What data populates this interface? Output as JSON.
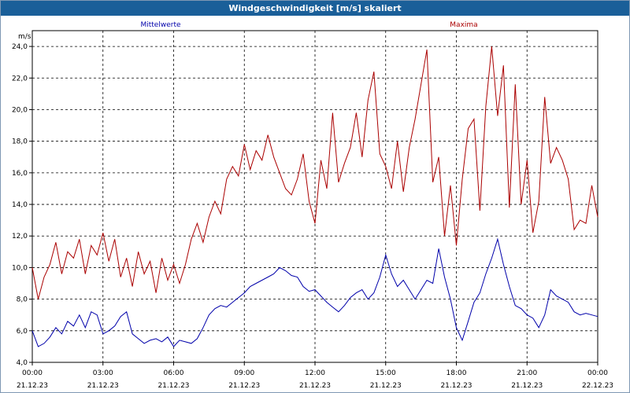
{
  "window": {
    "title": "Windgeschwindigkeit [m/s] skaliert"
  },
  "chart_data": {
    "type": "line",
    "title": "Windgeschwindigkeit [m/s] skaliert",
    "ylabel": "m/s",
    "ylim": [
      4.0,
      25.0
    ],
    "yticks": [
      "4,0",
      "6,0",
      "8,0",
      "10,0",
      "12,0",
      "14,0",
      "16,0",
      "18,0",
      "20,0",
      "22,0",
      "24,0"
    ],
    "xlim_hours": [
      0,
      24
    ],
    "xticks": [
      {
        "time": "00:00",
        "date": "21.12.23"
      },
      {
        "time": "03:00",
        "date": "21.12.23"
      },
      {
        "time": "06:00",
        "date": "21.12.23"
      },
      {
        "time": "09:00",
        "date": "21.12.23"
      },
      {
        "time": "12:00",
        "date": "21.12.23"
      },
      {
        "time": "15:00",
        "date": "21.12.23"
      },
      {
        "time": "18:00",
        "date": "21.12.23"
      },
      {
        "time": "21:00",
        "date": "21.12.23"
      },
      {
        "time": "00:00",
        "date": "22.12.23"
      }
    ],
    "grid": true,
    "series": [
      {
        "name": "Mittelwerte",
        "color": "#0000aa",
        "x": [
          0,
          0.25,
          0.5,
          0.75,
          1,
          1.25,
          1.5,
          1.75,
          2,
          2.25,
          2.5,
          2.75,
          3,
          3.25,
          3.5,
          3.75,
          4,
          4.25,
          4.5,
          4.75,
          5,
          5.25,
          5.5,
          5.75,
          6,
          6.25,
          6.5,
          6.75,
          7,
          7.25,
          7.5,
          7.75,
          8,
          8.25,
          8.5,
          8.75,
          9,
          9.25,
          9.5,
          9.75,
          10,
          10.25,
          10.5,
          10.75,
          11,
          11.25,
          11.5,
          11.75,
          12,
          12.25,
          12.5,
          12.75,
          13,
          13.25,
          13.5,
          13.75,
          14,
          14.25,
          14.5,
          14.75,
          15,
          15.25,
          15.5,
          15.75,
          16,
          16.25,
          16.5,
          16.75,
          17,
          17.25,
          17.5,
          17.75,
          18,
          18.25,
          18.5,
          18.75,
          19,
          19.25,
          19.5,
          19.75,
          20,
          20.25,
          20.5,
          20.75,
          21,
          21.25,
          21.5,
          21.75,
          22,
          22.25,
          22.5,
          22.75,
          23,
          23.25,
          23.5,
          23.75,
          24
        ],
        "values": [
          6.0,
          5.0,
          5.2,
          5.6,
          6.2,
          5.8,
          6.6,
          6.3,
          7.0,
          6.2,
          7.2,
          7.0,
          5.8,
          6.0,
          6.3,
          6.9,
          7.2,
          5.8,
          5.5,
          5.2,
          5.4,
          5.5,
          5.3,
          5.6,
          5.0,
          5.4,
          5.3,
          5.2,
          5.5,
          6.2,
          7.0,
          7.4,
          7.6,
          7.5,
          7.8,
          8.1,
          8.4,
          8.8,
          9.0,
          9.2,
          9.4,
          9.6,
          10.0,
          9.8,
          9.5,
          9.4,
          8.8,
          8.5,
          8.6,
          8.2,
          7.8,
          7.5,
          7.2,
          7.6,
          8.1,
          8.4,
          8.6,
          8.0,
          8.4,
          9.4,
          10.8,
          9.6,
          8.8,
          9.2,
          8.6,
          8.0,
          8.6,
          9.2,
          9.0,
          11.2,
          9.4,
          8.0,
          6.2,
          5.4,
          6.6,
          7.8,
          8.4,
          9.6,
          10.6,
          11.8,
          10.2,
          8.8,
          7.6,
          7.4,
          7.0,
          6.8,
          6.2,
          7.0,
          8.6,
          8.2,
          8.0,
          7.8,
          7.2,
          7.0,
          7.1,
          7.0,
          6.9
        ]
      },
      {
        "name": "Maxima",
        "color": "#aa0000",
        "x": [
          0,
          0.25,
          0.5,
          0.75,
          1,
          1.25,
          1.5,
          1.75,
          2,
          2.25,
          2.5,
          2.75,
          3,
          3.25,
          3.5,
          3.75,
          4,
          4.25,
          4.5,
          4.75,
          5,
          5.25,
          5.5,
          5.75,
          6,
          6.25,
          6.5,
          6.75,
          7,
          7.25,
          7.5,
          7.75,
          8,
          8.25,
          8.5,
          8.75,
          9,
          9.25,
          9.5,
          9.75,
          10,
          10.25,
          10.5,
          10.75,
          11,
          11.25,
          11.5,
          11.75,
          12,
          12.25,
          12.5,
          12.75,
          13,
          13.25,
          13.5,
          13.75,
          14,
          14.25,
          14.5,
          14.75,
          15,
          15.25,
          15.5,
          15.75,
          16,
          16.25,
          16.5,
          16.75,
          17,
          17.25,
          17.5,
          17.75,
          18,
          18.25,
          18.5,
          18.75,
          19,
          19.25,
          19.5,
          19.75,
          20,
          20.25,
          20.5,
          20.75,
          21,
          21.25,
          21.5,
          21.75,
          22,
          22.25,
          22.5,
          22.75,
          23,
          23.25,
          23.5,
          23.75,
          24
        ],
        "values": [
          10.0,
          8.0,
          9.4,
          10.2,
          11.6,
          9.6,
          11.0,
          10.6,
          11.8,
          9.6,
          11.4,
          10.8,
          12.2,
          10.4,
          11.8,
          9.4,
          10.6,
          8.8,
          11.0,
          9.6,
          10.4,
          8.4,
          10.6,
          9.2,
          10.2,
          9.0,
          10.2,
          11.8,
          12.8,
          11.6,
          13.2,
          14.2,
          13.4,
          15.6,
          16.4,
          15.8,
          17.8,
          16.2,
          17.4,
          16.8,
          18.4,
          17.0,
          16.0,
          15.0,
          14.6,
          15.6,
          17.2,
          14.2,
          12.8,
          16.8,
          15.0,
          19.8,
          15.4,
          16.6,
          17.6,
          19.8,
          17.0,
          20.6,
          22.4,
          17.2,
          16.4,
          15.0,
          18.0,
          14.8,
          17.6,
          19.4,
          21.6,
          23.8,
          15.4,
          17.0,
          12.0,
          15.2,
          11.4,
          15.6,
          18.8,
          19.4,
          13.6,
          20.2,
          24.0,
          19.6,
          22.8,
          13.8,
          21.6,
          14.0,
          16.8,
          12.2,
          14.2,
          20.8,
          16.6,
          17.6,
          16.8,
          15.6,
          12.4,
          13.0,
          12.8,
          15.2,
          13.2
        ]
      }
    ]
  }
}
